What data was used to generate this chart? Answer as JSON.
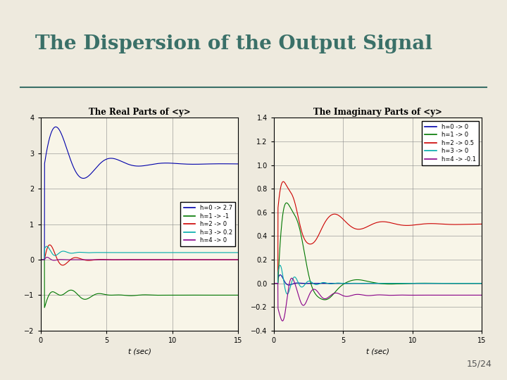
{
  "title": "The Dispersion of the Output Signal",
  "title_color": "#3a7068",
  "background_color": "#eeeade",
  "plot_bg": "#ffffff",
  "slide_bg": "#eeeade",
  "page_num": "15/24",
  "left_plot": {
    "title": "The Real Parts of <y>",
    "xlabel": "t (sec)",
    "xlim": [
      0,
      15
    ],
    "ylim": [
      -2,
      4
    ],
    "yticks": [
      -2,
      -1,
      0,
      1,
      2,
      3,
      4
    ],
    "xticks": [
      0,
      5,
      10,
      15
    ],
    "legend": [
      {
        "label": "h=0 -> 2.7",
        "color": "#0000aa"
      },
      {
        "label": "h=1 -> -1",
        "color": "#007700"
      },
      {
        "label": "h=2 -> 0",
        "color": "#cc0000"
      },
      {
        "label": "h=3 -> 0.2",
        "color": "#00aaaa"
      },
      {
        "label": "h=4 -> 0",
        "color": "#880088"
      }
    ]
  },
  "right_plot": {
    "title": "The Imaginary Parts of <y>",
    "xlabel": "t (sec)",
    "xlim": [
      0,
      15
    ],
    "ylim": [
      -0.4,
      1.4
    ],
    "yticks": [
      -0.4,
      -0.2,
      0,
      0.2,
      0.4,
      0.6,
      0.8,
      1.0,
      1.2,
      1.4
    ],
    "xticks": [
      0,
      5,
      10,
      15
    ],
    "legend": [
      {
        "label": "h=0 -> 0",
        "color": "#0000aa"
      },
      {
        "label": "h=1 -> 0",
        "color": "#007700"
      },
      {
        "label": "h=2 -> 0.5",
        "color": "#cc0000"
      },
      {
        "label": "h=3 -> 0",
        "color": "#00aaaa"
      },
      {
        "label": "h=4 -> -0.1",
        "color": "#880088"
      }
    ]
  }
}
